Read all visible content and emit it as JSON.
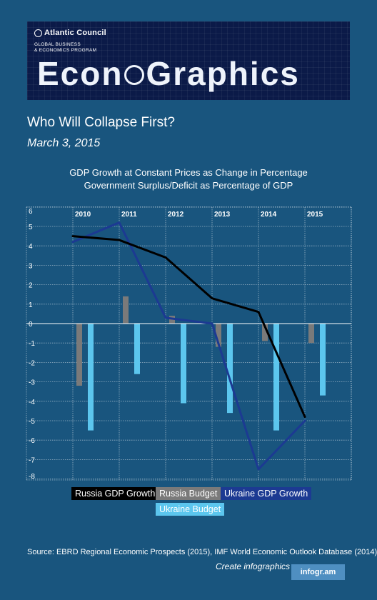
{
  "header": {
    "org_name": "Atlantic Council",
    "program": "GLOBAL BUSINESS\n& ECONOMICS PROGRAM",
    "brand_left": "Econ",
    "brand_right": "Graphics",
    "title": "Who Will Collapse First?",
    "date": "March 3, 2015"
  },
  "chart_data": {
    "type": "bar",
    "title_lines": [
      "GDP Growth at Constant Prices as Change in Percentage",
      "Government Surplus/Deficit as Percentage of GDP"
    ],
    "categories": [
      "2010",
      "2011",
      "2012",
      "2013",
      "2014",
      "2015"
    ],
    "y_ticks": [
      6,
      5,
      4,
      3,
      2,
      1,
      0,
      -1,
      -2,
      -3,
      -4,
      -5,
      -6,
      -7,
      -8
    ],
    "ylim": [
      -8,
      6
    ],
    "grid": true,
    "series": [
      {
        "name": "Russia GDP Growth",
        "type": "line",
        "color": "#000000",
        "values": [
          4.5,
          4.3,
          3.4,
          1.3,
          0.6,
          -4.8
        ]
      },
      {
        "name": "Russia Budget",
        "type": "bar",
        "color": "#7a7a7a",
        "values": [
          -3.2,
          1.4,
          0.4,
          -1.2,
          -0.9,
          -1.0
        ]
      },
      {
        "name": "Ukraine GDP Growth",
        "type": "line",
        "color": "#1c3a92",
        "values": [
          4.2,
          5.2,
          0.3,
          0.0,
          -7.5,
          -5.0
        ]
      },
      {
        "name": "Ukraine Budget",
        "type": "bar",
        "color": "#5cc6ee",
        "values": [
          -5.5,
          -2.6,
          -4.1,
          -4.6,
          -5.5,
          -3.7
        ]
      }
    ],
    "legend_position": "bottom"
  },
  "footer": {
    "source": "Source: EBRD Regional Economic Prospects (2015), IMF World Economic Outlook Database (2014)",
    "create": "Create infographics",
    "infogram": "infogr.am"
  }
}
